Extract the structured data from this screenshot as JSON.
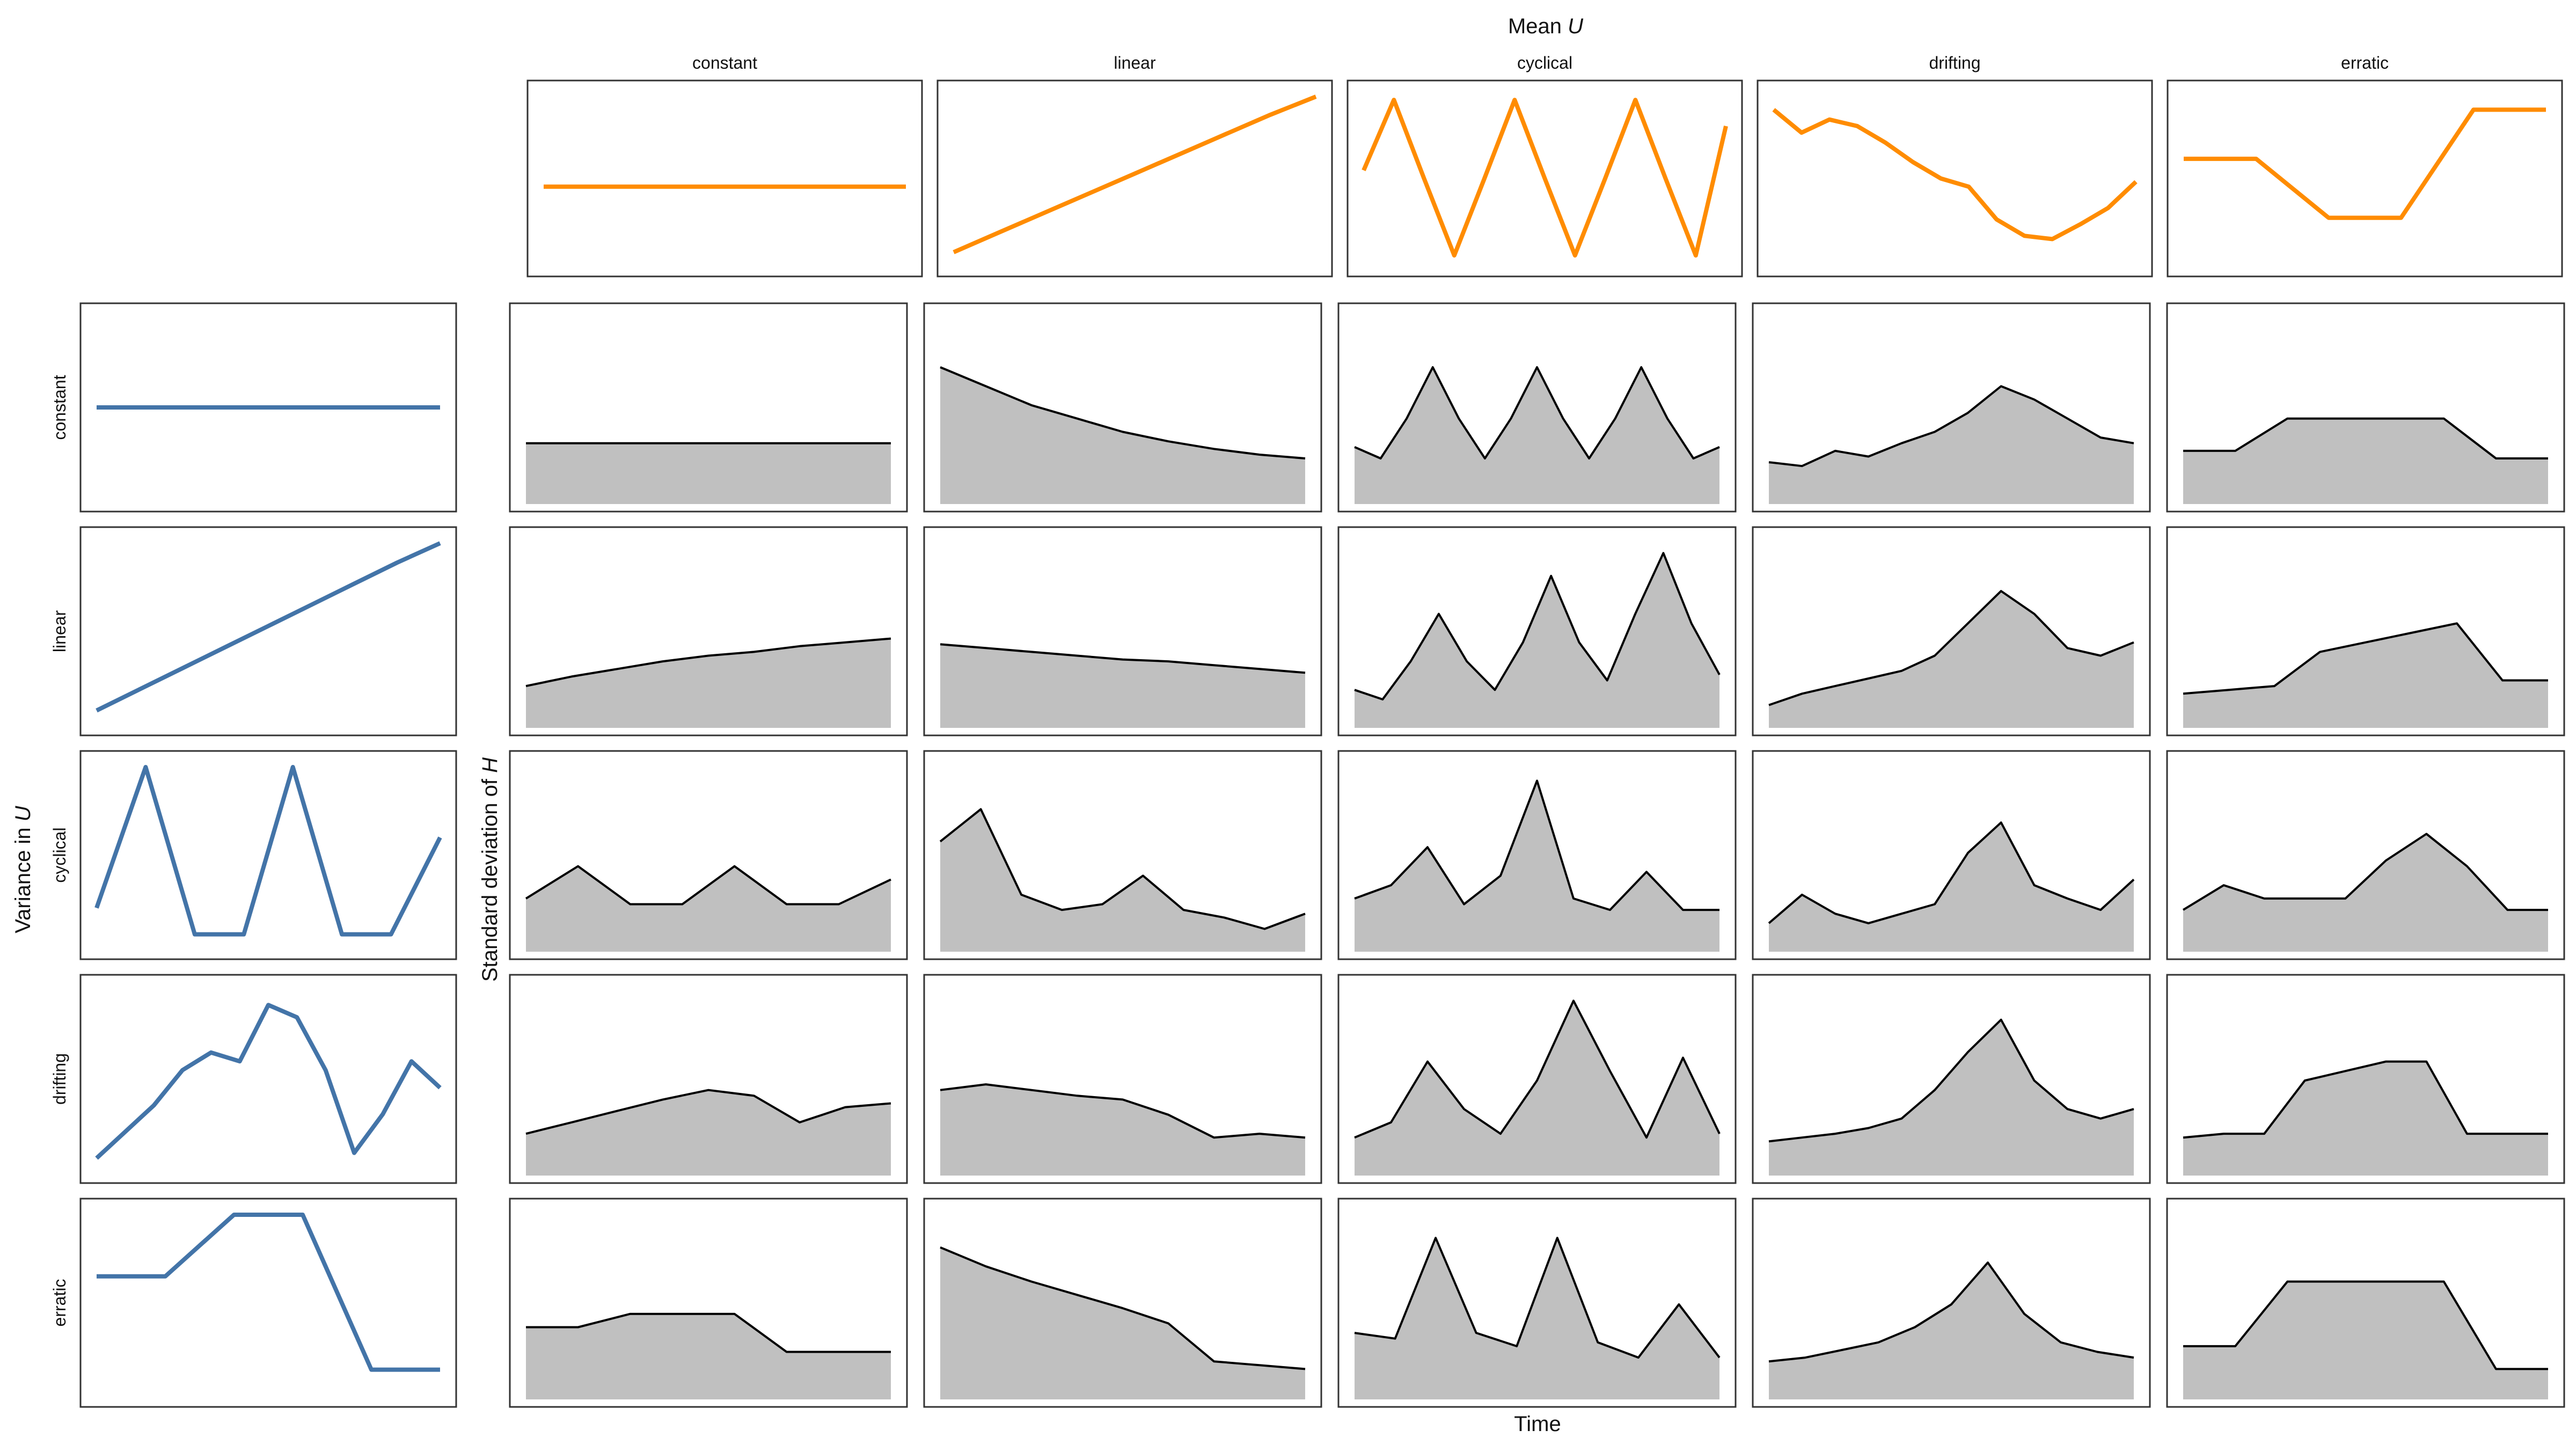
{
  "titles": {
    "mean_title": "Mean",
    "mean_title_var": "U",
    "variance_title": "Variance in",
    "variance_title_var": "U",
    "sd_title": "Standard deviation of",
    "sd_title_var": "H",
    "time_label": "Time"
  },
  "column_labels": [
    "constant",
    "linear",
    "cyclical",
    "drifting",
    "erratic"
  ],
  "row_labels": [
    "constant",
    "linear",
    "cyclical",
    "drifting",
    "erratic"
  ],
  "colors": {
    "mean_line": "#FF8C00",
    "variance_line": "#4374A8",
    "sd_fill": "#C0C0C0",
    "sd_line": "#000000",
    "frame": "#333333"
  },
  "chart_data": [
    {
      "type": "line",
      "panel": "mean-U",
      "series_names": [
        "constant",
        "linear",
        "cyclical",
        "drifting",
        "erratic"
      ],
      "x_range": [
        0,
        1
      ],
      "y_range": [
        0,
        1
      ],
      "series_values": [
        [
          0.45,
          0.45,
          0.45,
          0.45,
          0.45,
          0.45,
          0.45,
          0.45,
          0.45
        ],
        [
          0.05,
          0.17,
          0.29,
          0.41,
          0.53,
          0.65,
          0.77,
          0.89,
          1.0
        ],
        [
          0.55,
          0.98,
          0.5,
          0.03,
          0.5,
          0.98,
          0.5,
          0.03,
          0.5,
          0.98,
          0.5,
          0.03,
          0.82
        ],
        [
          0.92,
          0.78,
          0.86,
          0.82,
          0.72,
          0.6,
          0.5,
          0.45,
          0.25,
          0.15,
          0.13,
          0.22,
          0.32,
          0.48
        ],
        [
          0.62,
          0.62,
          0.26,
          0.26,
          0.92,
          0.92
        ]
      ]
    },
    {
      "type": "line",
      "panel": "variance-U",
      "series_names": [
        "constant",
        "linear",
        "cyclical",
        "drifting",
        "erratic"
      ],
      "x_range": [
        0,
        1
      ],
      "y_range": [
        0,
        1
      ],
      "series_values": [
        [
          0.5,
          0.5,
          0.5,
          0.5,
          0.5,
          0.5,
          0.5,
          0.5,
          0.5
        ],
        [
          0.05,
          0.17,
          0.29,
          0.41,
          0.53,
          0.65,
          0.77,
          0.89,
          1.0
        ],
        [
          0.2,
          1.0,
          0.05,
          0.05,
          1.0,
          0.05,
          0.05,
          0.6
        ],
        [
          0.05,
          0.2,
          0.35,
          0.55,
          0.65,
          0.6,
          0.92,
          0.85,
          0.55,
          0.08,
          0.3,
          0.6,
          0.45
        ],
        [
          0.65,
          0.65,
          1.0,
          1.0,
          0.12,
          0.12
        ]
      ]
    },
    {
      "type": "area",
      "panel": "sd-H",
      "rows": [
        "constant",
        "linear",
        "cyclical",
        "drifting",
        "erratic"
      ],
      "columns": [
        "constant",
        "linear",
        "cyclical",
        "drifting",
        "erratic"
      ],
      "y_range": [
        0,
        1
      ],
      "grid": [
        [
          [
            0.32,
            0.32,
            0.32,
            0.32,
            0.32,
            0.32,
            0.32,
            0.32,
            0.32
          ],
          [
            0.72,
            0.62,
            0.52,
            0.45,
            0.38,
            0.33,
            0.29,
            0.26,
            0.24
          ],
          [
            0.3,
            0.24,
            0.45,
            0.72,
            0.45,
            0.24,
            0.45,
            0.72,
            0.45,
            0.24,
            0.45,
            0.72,
            0.45,
            0.24,
            0.3
          ],
          [
            0.22,
            0.2,
            0.28,
            0.25,
            0.32,
            0.38,
            0.48,
            0.62,
            0.55,
            0.45,
            0.35,
            0.32
          ],
          [
            0.28,
            0.28,
            0.45,
            0.45,
            0.45,
            0.45,
            0.24,
            0.24
          ]
        ],
        [
          [
            0.22,
            0.27,
            0.31,
            0.35,
            0.38,
            0.4,
            0.43,
            0.45,
            0.47
          ],
          [
            0.44,
            0.42,
            0.4,
            0.38,
            0.36,
            0.35,
            0.33,
            0.31,
            0.29
          ],
          [
            0.2,
            0.15,
            0.35,
            0.6,
            0.35,
            0.2,
            0.45,
            0.8,
            0.45,
            0.25,
            0.6,
            0.92,
            0.55,
            0.28
          ],
          [
            0.12,
            0.18,
            0.22,
            0.26,
            0.3,
            0.38,
            0.55,
            0.72,
            0.6,
            0.42,
            0.38,
            0.45
          ],
          [
            0.18,
            0.2,
            0.22,
            0.4,
            0.45,
            0.5,
            0.55,
            0.25,
            0.25
          ]
        ],
        [
          [
            0.28,
            0.45,
            0.25,
            0.25,
            0.45,
            0.25,
            0.25,
            0.38
          ],
          [
            0.58,
            0.75,
            0.3,
            0.22,
            0.25,
            0.4,
            0.22,
            0.18,
            0.12,
            0.2
          ],
          [
            0.28,
            0.35,
            0.55,
            0.25,
            0.4,
            0.9,
            0.28,
            0.22,
            0.42,
            0.22,
            0.22
          ],
          [
            0.15,
            0.3,
            0.2,
            0.15,
            0.2,
            0.25,
            0.52,
            0.68,
            0.35,
            0.28,
            0.22,
            0.38
          ],
          [
            0.22,
            0.35,
            0.28,
            0.28,
            0.28,
            0.48,
            0.62,
            0.45,
            0.22,
            0.22
          ]
        ],
        [
          [
            0.22,
            0.28,
            0.34,
            0.4,
            0.45,
            0.42,
            0.28,
            0.36,
            0.38
          ],
          [
            0.45,
            0.48,
            0.45,
            0.42,
            0.4,
            0.32,
            0.2,
            0.22,
            0.2
          ],
          [
            0.2,
            0.28,
            0.6,
            0.35,
            0.22,
            0.5,
            0.92,
            0.55,
            0.2,
            0.62,
            0.22
          ],
          [
            0.18,
            0.2,
            0.22,
            0.25,
            0.3,
            0.45,
            0.65,
            0.82,
            0.5,
            0.35,
            0.3,
            0.35
          ],
          [
            0.2,
            0.22,
            0.22,
            0.5,
            0.55,
            0.6,
            0.6,
            0.22,
            0.22,
            0.22
          ]
        ],
        [
          [
            0.38,
            0.38,
            0.45,
            0.45,
            0.45,
            0.25,
            0.25,
            0.25
          ],
          [
            0.8,
            0.7,
            0.62,
            0.55,
            0.48,
            0.4,
            0.2,
            0.18,
            0.16
          ],
          [
            0.35,
            0.32,
            0.85,
            0.35,
            0.28,
            0.85,
            0.3,
            0.22,
            0.5,
            0.22
          ],
          [
            0.2,
            0.22,
            0.26,
            0.3,
            0.38,
            0.5,
            0.72,
            0.45,
            0.3,
            0.25,
            0.22
          ],
          [
            0.28,
            0.28,
            0.62,
            0.62,
            0.62,
            0.62,
            0.16,
            0.16
          ]
        ]
      ]
    }
  ]
}
